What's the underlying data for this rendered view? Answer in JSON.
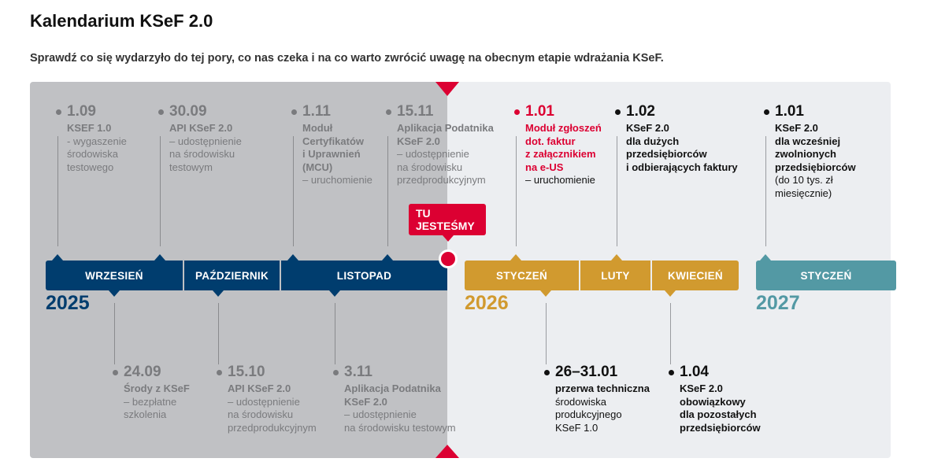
{
  "title": "Kalendarium KSeF 2.0",
  "subtitle": "Sprawdź co się wydarzyło do tej pory, co nas czeka i na co warto zwrócić uwagę na obecnym etapie wdrażania KSeF.",
  "colors": {
    "navy": "#003d6e",
    "gold": "#d19a2f",
    "teal": "#5399a4",
    "red": "#dc0032",
    "past_bg": "#c0c1c4",
    "future_bg": "#eceef1"
  },
  "marker": "TU\nJESTEŚMY",
  "years": [
    "2025",
    "2026",
    "2027"
  ],
  "months": [
    "WRZESIEŃ",
    "PAŹDZIERNIK",
    "LISTOPAD",
    "STYCZEŃ",
    "LUTY",
    "KWIECIEŃ",
    "STYCZEŃ"
  ],
  "top_events": [
    {
      "date": "1.09",
      "title": "KSEF 1.0",
      "desc": "- wygaszenie\nśrodowiska\ntestowego"
    },
    {
      "date": "30.09",
      "title": "API KSeF 2.0",
      "desc": "– udostępnienie\nna środowisku\ntestowym"
    },
    {
      "date": "1.11",
      "title": "Moduł\nCertyfikatów\ni Uprawnień\n(MCU)",
      "desc": "– uruchomienie"
    },
    {
      "date": "15.11",
      "title": "Aplikacja Podatnika\nKSeF 2.0",
      "desc": "– udostępnienie\nna środowisku\nprzedprodukcyjnym"
    },
    {
      "date": "1.01",
      "title": "Moduł zgłoszeń\ndot. faktur\nz załącznikiem\nna e-US",
      "desc": "– uruchomienie"
    },
    {
      "date": "1.02",
      "title": "KSeF 2.0\ndla dużych\nprzedsiębiorców\ni odbierających faktury",
      "desc": ""
    },
    {
      "date": "1.01",
      "title": "KSeF 2.0\ndla wcześniej\nzwolnionych\nprzedsiębiorców",
      "desc": "(do 10 tys. zł\nmiesięcznie)"
    }
  ],
  "bottom_events": [
    {
      "date": "24.09",
      "title": "Środy z KSeF",
      "desc": "– bezpłatne\nszkolenia"
    },
    {
      "date": "15.10",
      "title": "API KSeF 2.0",
      "desc": "– udostępnienie\nna środowisku\nprzedprodukcyjnym"
    },
    {
      "date": "3.11",
      "title": "Aplikacja Podatnika\nKSeF 2.0",
      "desc": "– udostępnienie\nna środowisku testowym"
    },
    {
      "date": "26–31.01",
      "title": "przerwa techniczna",
      "desc": "środowiska\nprodukcyjnego\nKSeF 1.0"
    },
    {
      "date": "1.04",
      "title": "KSeF 2.0\nobowiązkowy\ndla pozostałych\nprzedsiębiorców",
      "desc": ""
    }
  ]
}
